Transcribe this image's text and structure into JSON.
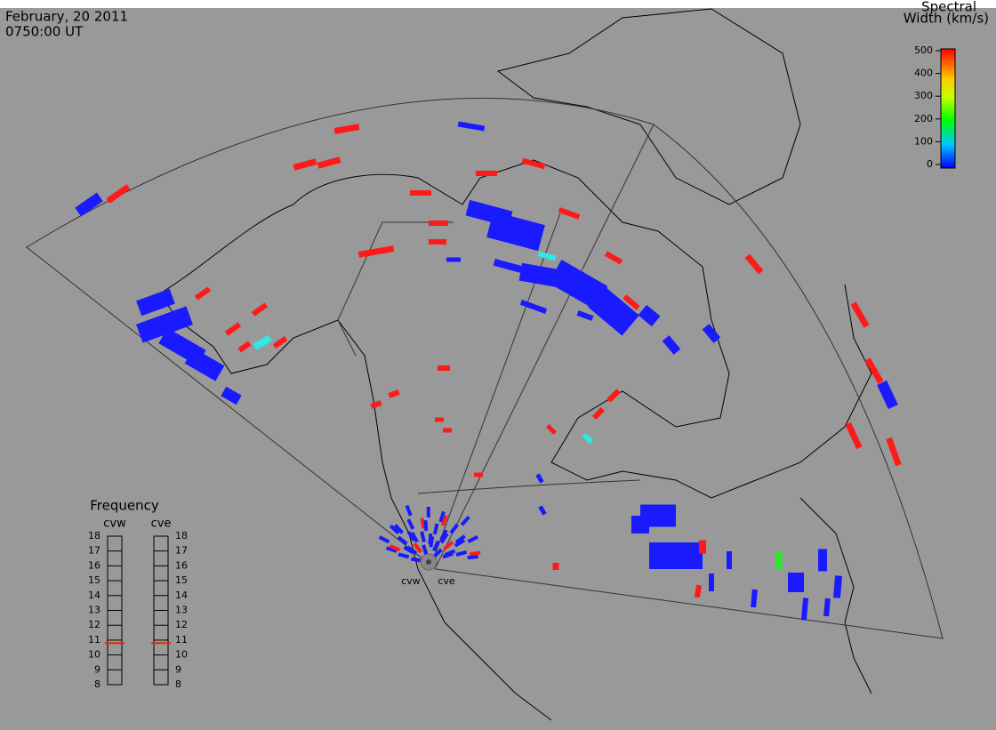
{
  "header": {
    "date": "February, 20 2011",
    "time": "0750:00 UT"
  },
  "colorbar": {
    "title_line1": "Spectral",
    "title_line2": "Width (km/s)",
    "range": [
      0,
      500
    ],
    "ticks": [
      0,
      100,
      200,
      300,
      400,
      500
    ]
  },
  "frequency": {
    "title": "Frequency",
    "range": [
      8,
      18
    ],
    "ticks": [
      8,
      9,
      10,
      11,
      12,
      13,
      14,
      15,
      16,
      17,
      18
    ],
    "radars": [
      {
        "name": "cvw",
        "value": 10.8
      },
      {
        "name": "cve",
        "value": 10.8
      }
    ]
  }
}
